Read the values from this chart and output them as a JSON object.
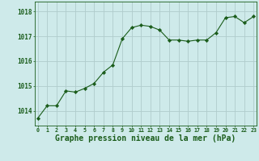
{
  "x": [
    0,
    1,
    2,
    3,
    4,
    5,
    6,
    7,
    8,
    9,
    10,
    11,
    12,
    13,
    14,
    15,
    16,
    17,
    18,
    19,
    20,
    21,
    22,
    23
  ],
  "y": [
    1013.7,
    1014.2,
    1014.2,
    1014.8,
    1014.75,
    1014.9,
    1015.1,
    1015.55,
    1015.85,
    1016.9,
    1017.35,
    1017.45,
    1017.4,
    1017.25,
    1016.85,
    1016.85,
    1016.8,
    1016.85,
    1016.85,
    1017.15,
    1017.75,
    1017.8,
    1017.55,
    1017.8
  ],
  "line_color": "#1a5c1a",
  "marker": "D",
  "marker_size": 2.2,
  "bg_color": "#ceeaea",
  "grid_color": "#b0cccc",
  "axis_color": "#1a5c1a",
  "tick_color": "#1a5c1a",
  "xlabel": "Graphe pression niveau de la mer (hPa)",
  "xlabel_fontsize": 7.0,
  "ytick_labels": [
    "1014",
    "1015",
    "1016",
    "1017",
    "1018"
  ],
  "ytick_vals": [
    1014,
    1015,
    1016,
    1017,
    1018
  ],
  "xtick_labels": [
    "0",
    "1",
    "2",
    "3",
    "4",
    "5",
    "6",
    "7",
    "8",
    "9",
    "10",
    "11",
    "12",
    "13",
    "14",
    "15",
    "16",
    "17",
    "18",
    "19",
    "20",
    "21",
    "22",
    "23"
  ],
  "xtick_vals": [
    0,
    1,
    2,
    3,
    4,
    5,
    6,
    7,
    8,
    9,
    10,
    11,
    12,
    13,
    14,
    15,
    16,
    17,
    18,
    19,
    20,
    21,
    22,
    23
  ],
  "ylim": [
    1013.4,
    1018.4
  ],
  "xlim": [
    -0.3,
    23.3
  ]
}
